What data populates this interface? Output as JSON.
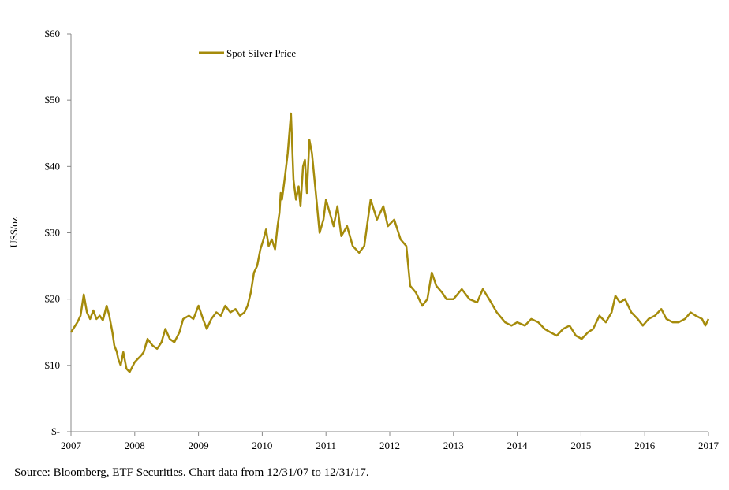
{
  "chart_data": {
    "type": "line",
    "y_label": "US$/oz",
    "source": "Source: Bloomberg, ETF Securities. Chart data from 12/31/07 to 12/31/17.",
    "legend": "top-left",
    "series": [
      {
        "name": "Spot Silver Price",
        "color": "#a58b0b",
        "x": [
          2007.0,
          2007.1,
          2007.15,
          2007.2,
          2007.25,
          2007.3,
          2007.35,
          2007.4,
          2007.45,
          2007.5,
          2007.56,
          2007.6,
          2007.65,
          2007.68,
          2007.72,
          2007.74,
          2007.78,
          2007.82,
          2007.87,
          2007.92,
          2008.0,
          2008.05,
          2008.1,
          2008.14,
          2008.2,
          2008.28,
          2008.35,
          2008.42,
          2008.48,
          2008.55,
          2008.62,
          2008.7,
          2008.76,
          2008.85,
          2008.92,
          2009.0,
          2009.07,
          2009.13,
          2009.2,
          2009.28,
          2009.35,
          2009.42,
          2009.5,
          2009.58,
          2009.65,
          2009.72,
          2009.77,
          2009.82,
          2009.87,
          2009.92,
          2009.97,
          2010.02,
          2010.06,
          2010.1,
          2010.15,
          2010.2,
          2010.24,
          2010.27,
          2010.29,
          2010.31,
          2010.35,
          2010.4,
          2010.45,
          2010.49,
          2010.53,
          2010.57,
          2010.6,
          2010.64,
          2010.67,
          2010.7,
          2010.74,
          2010.78,
          2010.84,
          2010.9,
          2010.96,
          2011.0,
          2011.06,
          2011.12,
          2011.18,
          2011.24,
          2011.33,
          2011.42,
          2011.52,
          2011.6,
          2011.7,
          2011.8,
          2011.9,
          2011.97,
          2012.07,
          2012.17,
          2012.26,
          2012.32,
          2012.41,
          2012.51,
          2012.59,
          2012.66,
          2012.73,
          2012.82,
          2012.89,
          2013.0,
          2013.13,
          2013.25,
          2013.37,
          2013.46,
          2013.56,
          2013.68,
          2013.81,
          2013.91,
          2014.0,
          2014.12,
          2014.22,
          2014.33,
          2014.43,
          2014.52,
          2014.62,
          2014.72,
          2014.82,
          2014.92,
          2015.01,
          2015.11,
          2015.19,
          2015.29,
          2015.39,
          2015.48,
          2015.54,
          2015.61,
          2015.69,
          2015.79,
          2015.89,
          2015.97,
          2016.06,
          2016.16,
          2016.26,
          2016.34,
          2016.44,
          2016.53,
          2016.63,
          2016.72,
          2016.8,
          2016.9,
          2016.95,
          2017.0
        ],
        "values": [
          15,
          16.5,
          17.5,
          20.7,
          18,
          17,
          18.3,
          17,
          17.5,
          16.8,
          19,
          17.5,
          15,
          13,
          12,
          11,
          10,
          12,
          9.5,
          9,
          10.5,
          11,
          11.5,
          12,
          14,
          13,
          12.5,
          13.5,
          15.5,
          14,
          13.5,
          15,
          17,
          17.5,
          17,
          19,
          17,
          15.5,
          17,
          18,
          17.5,
          19,
          18,
          18.5,
          17.5,
          18,
          19,
          21,
          24,
          25,
          27.5,
          29,
          30.5,
          28,
          29,
          27.5,
          31,
          33,
          36,
          35,
          38,
          42,
          48,
          38,
          35,
          37,
          34,
          40,
          41,
          36,
          44,
          42,
          36,
          30,
          32,
          35,
          33,
          31,
          34,
          29.5,
          31,
          28,
          27,
          28,
          35,
          32,
          34,
          31,
          32,
          29,
          28,
          22,
          21,
          19,
          20,
          24,
          22,
          21,
          20,
          20,
          21.5,
          20,
          19.5,
          21.5,
          20,
          18,
          16.5,
          16,
          16.5,
          16,
          17,
          16.5,
          15.5,
          15,
          14.5,
          15.5,
          16,
          14.5,
          14,
          15,
          15.5,
          17.5,
          16.5,
          18,
          20.5,
          19.5,
          20,
          18,
          17,
          16,
          17,
          17.5,
          18.5,
          17,
          16.5,
          16.5,
          17,
          18,
          17.5,
          17,
          16,
          17
        ]
      }
    ],
    "xlim": [
      2007,
      2017
    ],
    "xticks": [
      2007,
      2008,
      2009,
      2010,
      2011,
      2012,
      2013,
      2014,
      2015,
      2016,
      2017
    ],
    "ylim": [
      0,
      60
    ],
    "yticks": [
      {
        "value": 0,
        "label": "$-"
      },
      {
        "value": 10,
        "label": "$10"
      },
      {
        "value": 20,
        "label": "$20"
      },
      {
        "value": 30,
        "label": "$30"
      },
      {
        "value": 40,
        "label": "$40"
      },
      {
        "value": 50,
        "label": "$50"
      },
      {
        "value": 60,
        "label": "$60"
      }
    ]
  }
}
